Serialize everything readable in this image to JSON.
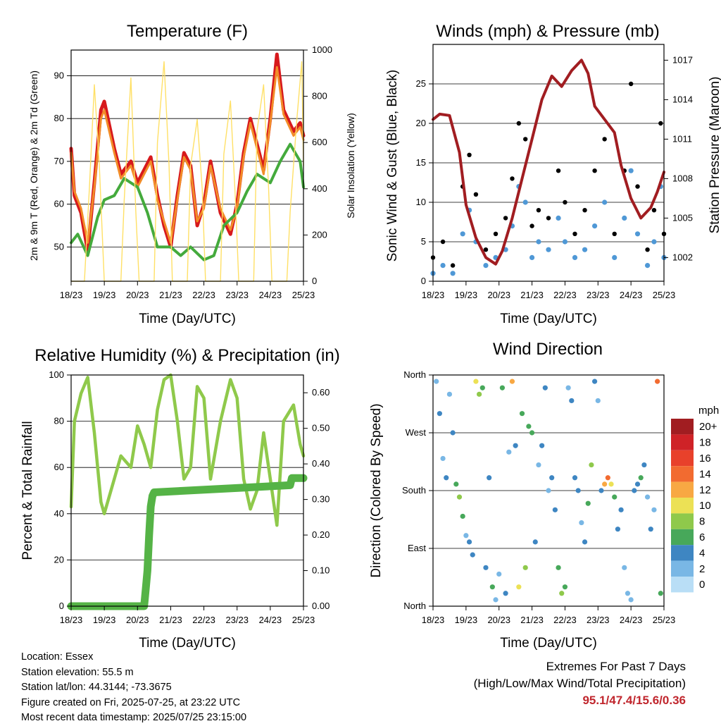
{
  "footer": {
    "location": "Location: Essex",
    "elevation": "Station elevation: 55.5 m",
    "latlon": "Station lat/lon: 44.3144; -73.3675",
    "created": "Figure created on Fri, 2025-07-25, at 23:22 UTC",
    "latest": "Most recent data timestamp: 2025/07/25 23:15:00"
  },
  "extremes": {
    "title": "Extremes For Past 7 Days",
    "subtitle": "(High/Low/Max Wind/Total Precipitation)",
    "values": "95.1/47.4/15.6/0.36"
  },
  "colors": {
    "temp_2m": "#d7191c",
    "temp_9m": "#f28c28",
    "dewpoint": "#44aa3c",
    "solar": "#ffe066",
    "gust": "#000000",
    "wind": "#4f98d6",
    "pressure": "#a11d21",
    "rh": "#8fc94b",
    "precip": "#55b346"
  },
  "chart_data": [
    {
      "id": "temperature",
      "type": "line",
      "title": "Temperature (F)",
      "xlabel": "Time (Day/UTC)",
      "ylabel": "2m & 9m T (Red, Orange) & 2m Td (Green)",
      "y2label": "Solar Insolation (Yellow)",
      "x_ticks": [
        "18/23",
        "19/23",
        "20/23",
        "21/23",
        "22/23",
        "23/23",
        "24/23",
        "25/23"
      ],
      "xlim": [
        0,
        7
      ],
      "ylim": [
        42,
        96
      ],
      "y_ticks": [
        50,
        60,
        70,
        80,
        90
      ],
      "y2lim": [
        0,
        1000
      ],
      "y2_ticks": [
        0,
        200,
        400,
        600,
        800,
        1000
      ],
      "grid": "horizontal",
      "series": [
        {
          "key": "temp_2m",
          "x": [
            0,
            0.1,
            0.3,
            0.5,
            0.7,
            0.9,
            1.0,
            1.3,
            1.5,
            1.8,
            2.0,
            2.2,
            2.4,
            2.6,
            2.8,
            3.0,
            3.2,
            3.4,
            3.6,
            3.8,
            4.0,
            4.2,
            4.5,
            4.8,
            5.0,
            5.2,
            5.4,
            5.6,
            5.8,
            6.0,
            6.2,
            6.4,
            6.7,
            6.9,
            7.0
          ],
          "y": [
            73,
            62,
            58,
            49,
            65,
            82,
            84,
            73,
            67,
            70,
            65,
            68,
            71,
            62,
            55,
            50,
            62,
            72,
            69,
            55,
            60,
            70,
            58,
            53,
            60,
            72,
            80,
            74,
            68,
            80,
            95,
            82,
            77,
            79,
            76
          ]
        },
        {
          "key": "temp_9m",
          "x": [
            0,
            0.1,
            0.3,
            0.5,
            0.7,
            0.9,
            1.0,
            1.3,
            1.5,
            1.8,
            2.0,
            2.2,
            2.4,
            2.6,
            2.8,
            3.0,
            3.2,
            3.4,
            3.6,
            3.8,
            4.0,
            4.2,
            4.5,
            4.8,
            5.0,
            5.2,
            5.4,
            5.6,
            5.8,
            6.0,
            6.2,
            6.4,
            6.7,
            6.9,
            7.0
          ],
          "y": [
            72,
            63,
            59,
            51,
            64,
            80,
            82,
            72,
            66,
            69,
            64,
            67,
            70,
            61,
            56,
            51,
            61,
            71,
            68,
            56,
            59,
            69,
            59,
            54,
            59,
            71,
            79,
            73,
            67,
            79,
            92,
            81,
            76,
            78,
            75
          ]
        },
        {
          "key": "dewpoint",
          "x": [
            0,
            0.2,
            0.5,
            0.8,
            1.0,
            1.3,
            1.6,
            2.0,
            2.3,
            2.6,
            3.0,
            3.3,
            3.6,
            4.0,
            4.3,
            4.6,
            5.0,
            5.3,
            5.6,
            6.0,
            6.3,
            6.6,
            6.9,
            7.0
          ],
          "y": [
            51,
            53,
            48,
            57,
            61,
            62,
            66,
            64,
            58,
            50,
            50,
            48,
            50,
            47,
            48,
            55,
            58,
            63,
            67,
            65,
            70,
            74,
            70,
            64
          ]
        },
        {
          "key": "solar",
          "x": [
            0.0,
            0.4,
            0.55,
            0.7,
            0.85,
            1.0,
            1.5,
            1.6,
            1.8,
            1.95,
            2.05,
            2.5,
            2.6,
            2.8,
            2.95,
            3.05,
            3.5,
            3.6,
            3.8,
            3.95,
            4.05,
            4.5,
            4.6,
            4.8,
            4.95,
            5.05,
            5.5,
            5.6,
            5.8,
            5.95,
            6.05,
            6.5,
            6.6,
            6.8,
            6.95,
            7.0
          ],
          "y": [
            0,
            0,
            400,
            850,
            500,
            0,
            0,
            350,
            880,
            300,
            0,
            0,
            600,
            950,
            500,
            0,
            0,
            500,
            700,
            400,
            0,
            0,
            550,
            780,
            350,
            0,
            0,
            650,
            850,
            400,
            0,
            0,
            300,
            700,
            950,
            500
          ]
        }
      ]
    },
    {
      "id": "winds",
      "type": "scatter",
      "title": "Winds (mph) & Pressure (mb)",
      "xlabel": "Time (Day/UTC)",
      "ylabel": "Sonic Wind & Gust (Blue, Black)",
      "y2label": "Station Pressure (Maroon)",
      "x_ticks": [
        "18/23",
        "19/23",
        "20/23",
        "21/23",
        "22/23",
        "23/23",
        "24/23",
        "25/23"
      ],
      "xlim": [
        0,
        7
      ],
      "ylim": [
        0,
        30
      ],
      "y_ticks": [
        0,
        5,
        10,
        15,
        20,
        25
      ],
      "y2lim": [
        1000.2,
        1018.2
      ],
      "y2_ticks": [
        1002,
        1005,
        1008,
        1011,
        1014,
        1017
      ],
      "grid": "horizontal",
      "series": [
        {
          "key": "gust",
          "x": [
            0,
            0.3,
            0.6,
            0.9,
            1.1,
            1.3,
            1.6,
            1.9,
            2.2,
            2.4,
            2.6,
            2.8,
            3.0,
            3.2,
            3.5,
            3.8,
            4.0,
            4.3,
            4.6,
            4.9,
            5.2,
            5.5,
            5.8,
            6.0,
            6.2,
            6.5,
            6.7,
            6.9,
            7.0
          ],
          "y": [
            3,
            5,
            2,
            12,
            16,
            11,
            4,
            6,
            8,
            13,
            20,
            18,
            7,
            9,
            8,
            14,
            10,
            6,
            9,
            14,
            18,
            6,
            14,
            25,
            12,
            4,
            9,
            20,
            6
          ]
        },
        {
          "key": "wind",
          "x": [
            0,
            0.3,
            0.6,
            0.9,
            1.1,
            1.3,
            1.6,
            1.9,
            2.2,
            2.4,
            2.6,
            2.8,
            3.0,
            3.2,
            3.5,
            3.8,
            4.0,
            4.3,
            4.6,
            4.9,
            5.2,
            5.5,
            5.8,
            6.0,
            6.2,
            6.5,
            6.7,
            6.9,
            7.0
          ],
          "y": [
            1,
            2,
            1,
            6,
            9,
            5,
            2,
            3,
            4,
            7,
            12,
            10,
            3,
            5,
            4,
            8,
            5,
            3,
            4,
            7,
            10,
            3,
            8,
            14,
            6,
            2,
            5,
            12,
            3
          ]
        },
        {
          "key": "pressure",
          "x": [
            0,
            0.2,
            0.5,
            0.8,
            1.0,
            1.3,
            1.6,
            1.9,
            2.1,
            2.4,
            2.7,
            3.0,
            3.3,
            3.6,
            3.9,
            4.2,
            4.5,
            4.7,
            4.9,
            5.2,
            5.5,
            5.7,
            6.0,
            6.3,
            6.6,
            6.8,
            7.0
          ],
          "y": [
            1012.5,
            1012.9,
            1012.8,
            1010.0,
            1006.0,
            1003.5,
            1002.0,
            1001.5,
            1002.5,
            1005.0,
            1008.0,
            1011.0,
            1014.0,
            1015.8,
            1015.0,
            1016.2,
            1017.0,
            1016.0,
            1013.5,
            1012.5,
            1011.5,
            1009.0,
            1006.5,
            1005.0,
            1005.8,
            1007.0,
            1008.5
          ]
        }
      ]
    },
    {
      "id": "humidity",
      "type": "line",
      "title": "Relative Humidity (%) & Precipitation (in)",
      "xlabel": "Time (Day/UTC)",
      "ylabel": "Percent & Total Rainfall",
      "x_ticks": [
        "18/23",
        "19/23",
        "20/23",
        "21/23",
        "22/23",
        "23/23",
        "24/23",
        "25/23"
      ],
      "xlim": [
        0,
        7
      ],
      "ylim": [
        0,
        100
      ],
      "y_ticks": [
        0,
        20,
        40,
        60,
        80,
        100
      ],
      "y2lim": [
        0,
        0.65
      ],
      "y2_ticks": [
        "0.00",
        "0.10",
        "0.20",
        "0.30",
        "0.40",
        "0.50",
        "0.60"
      ],
      "grid": "horizontal",
      "series": [
        {
          "key": "rh",
          "x": [
            0,
            0.1,
            0.3,
            0.5,
            0.7,
            0.9,
            1.0,
            1.3,
            1.5,
            1.8,
            2.0,
            2.2,
            2.4,
            2.6,
            2.8,
            3.0,
            3.2,
            3.4,
            3.6,
            3.8,
            4.0,
            4.2,
            4.5,
            4.8,
            5.0,
            5.2,
            5.4,
            5.6,
            5.8,
            6.0,
            6.2,
            6.4,
            6.7,
            6.9,
            7.0
          ],
          "y": [
            43,
            80,
            92,
            99,
            75,
            45,
            40,
            55,
            65,
            60,
            78,
            70,
            60,
            85,
            98,
            100,
            80,
            55,
            60,
            95,
            90,
            55,
            80,
            98,
            90,
            55,
            42,
            50,
            75,
            55,
            35,
            80,
            87,
            70,
            65
          ]
        },
        {
          "key": "precip",
          "x": [
            0,
            2.2,
            2.25,
            2.3,
            2.35,
            2.4,
            2.45,
            2.5,
            6.6,
            6.65,
            7.0
          ],
          "y": [
            0,
            0,
            0.05,
            0.1,
            0.2,
            0.28,
            0.31,
            0.32,
            0.34,
            0.36,
            0.36
          ]
        }
      ]
    },
    {
      "id": "wind_direction",
      "type": "scatter",
      "title": "Wind Direction",
      "xlabel": "Time (Day/UTC)",
      "ylabel": "Direction (Colored By Speed)",
      "x_ticks": [
        "18/23",
        "19/23",
        "20/23",
        "21/23",
        "22/23",
        "23/23",
        "24/23",
        "25/23"
      ],
      "xlim": [
        0,
        7
      ],
      "ylim": [
        0,
        360
      ],
      "y_ticks": [
        0,
        90,
        180,
        270,
        360
      ],
      "y_tick_labels": [
        "North",
        "East",
        "South",
        "West",
        "North"
      ],
      "grid": "horizontal",
      "legend": {
        "title": "mph",
        "placement": "right",
        "labels": [
          "20+",
          "18",
          "16",
          "14",
          "12",
          "10",
          "8",
          "6",
          "4",
          "2",
          "0"
        ],
        "colors": [
          "#a11d21",
          "#cf2227",
          "#e8412b",
          "#f26b30",
          "#f8a843",
          "#ece155",
          "#8fc94b",
          "#47a85a",
          "#3e86c2",
          "#79b7e5",
          "#b9def6"
        ]
      },
      "x": [
        0.1,
        0.2,
        0.3,
        0.4,
        0.5,
        0.6,
        0.7,
        0.8,
        0.9,
        1.0,
        1.1,
        1.2,
        1.3,
        1.4,
        1.5,
        1.6,
        1.7,
        1.8,
        1.9,
        2.0,
        2.1,
        2.2,
        2.3,
        2.4,
        2.5,
        2.6,
        2.7,
        2.8,
        2.9,
        3.0,
        3.1,
        3.2,
        3.3,
        3.4,
        3.5,
        3.6,
        3.7,
        3.8,
        3.9,
        4.0,
        4.1,
        4.2,
        4.3,
        4.4,
        4.5,
        4.6,
        4.7,
        4.8,
        4.9,
        5.0,
        5.1,
        5.2,
        5.3,
        5.4,
        5.5,
        5.6,
        5.7,
        5.8,
        5.9,
        6.0,
        6.1,
        6.2,
        6.3,
        6.4,
        6.5,
        6.6,
        6.7,
        6.8,
        6.9
      ],
      "y": [
        350,
        300,
        230,
        200,
        330,
        270,
        190,
        170,
        140,
        110,
        100,
        80,
        350,
        330,
        340,
        60,
        200,
        30,
        10,
        50,
        340,
        20,
        240,
        350,
        250,
        30,
        300,
        60,
        280,
        270,
        100,
        220,
        250,
        340,
        180,
        200,
        150,
        60,
        20,
        30,
        340,
        320,
        200,
        180,
        130,
        100,
        160,
        220,
        350,
        320,
        180,
        190,
        200,
        190,
        170,
        120,
        150,
        60,
        20,
        10,
        180,
        190,
        200,
        220,
        170,
        120,
        150,
        350,
        20
      ],
      "speed": [
        2,
        3,
        2,
        4,
        1,
        3,
        6,
        8,
        5,
        2,
        3,
        4,
        9,
        7,
        5,
        3,
        4,
        6,
        2,
        1,
        5,
        3,
        2,
        12,
        4,
        10,
        6,
        8,
        6,
        5,
        3,
        2,
        4,
        3,
        2,
        3,
        4,
        6,
        8,
        5,
        2,
        3,
        4,
        3,
        2,
        3,
        6,
        8,
        4,
        2,
        3,
        12,
        14,
        10,
        6,
        4,
        3,
        2,
        1,
        2,
        3,
        4,
        5,
        3,
        2,
        4,
        2,
        14,
        6
      ]
    }
  ]
}
